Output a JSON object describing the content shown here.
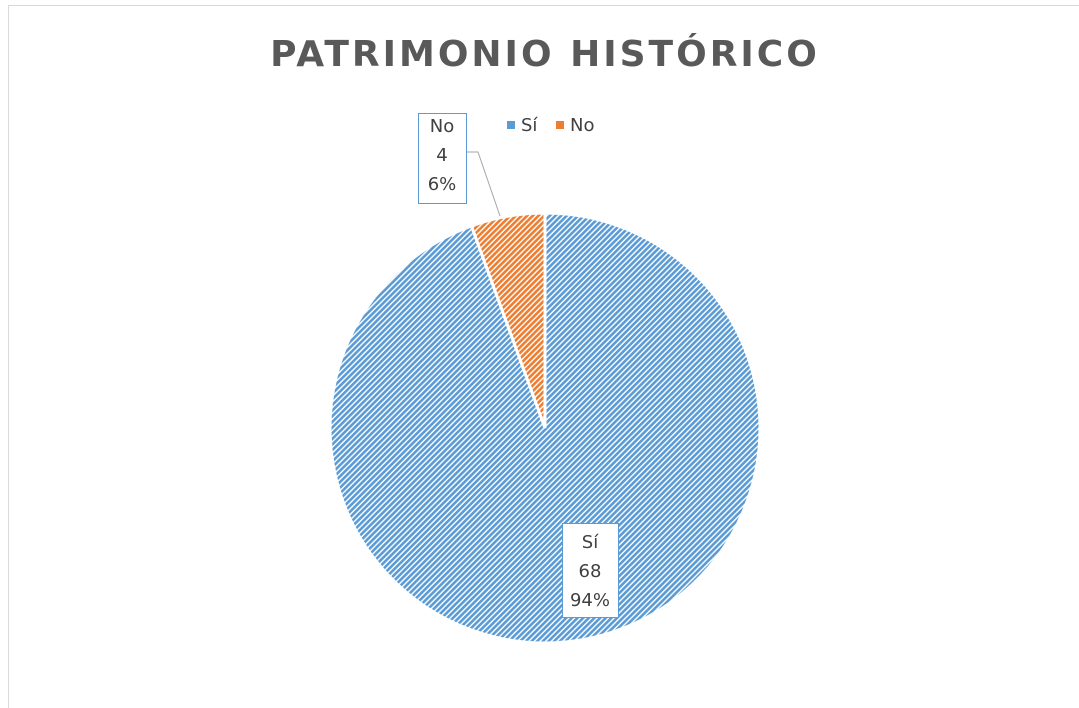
{
  "chart_data": {
    "type": "pie",
    "title": "PATRIMONIO HISTÓRICO",
    "categories": [
      "Sí",
      "No"
    ],
    "values": [
      68,
      4
    ],
    "percent_labels": [
      "94%",
      "6%"
    ],
    "colors": [
      "#5b9bd5",
      "#ed7d31"
    ],
    "legend": "top"
  }
}
